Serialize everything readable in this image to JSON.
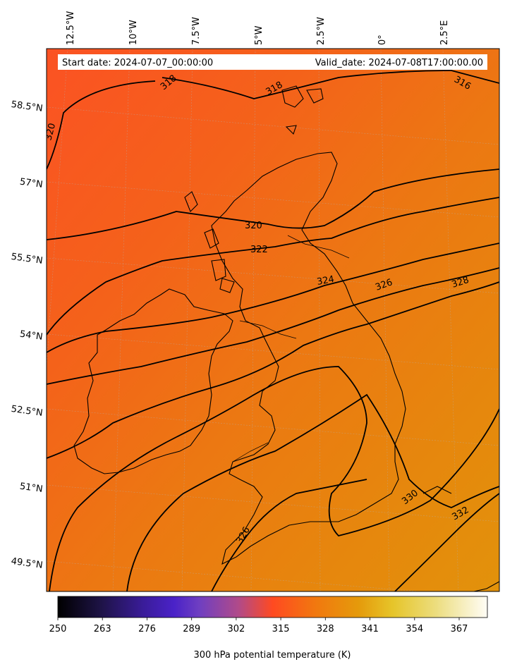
{
  "header": {
    "start_date": "Start date: 2024-07-07_00:00:00",
    "valid_date": "Valid_date: 2024-07-08T17:00:00.00"
  },
  "longitude_labels": [
    "12.5°W",
    "10°W",
    "7.5°W",
    "5°W",
    "2.5°W",
    "0°",
    "2.5°E"
  ],
  "latitude_labels": [
    "58.5°N",
    "57°N",
    "55.5°N",
    "54°N",
    "52.5°N",
    "51°N",
    "49.5°N"
  ],
  "contour_labels": [
    "318",
    "318",
    "316",
    "320",
    "320",
    "322",
    "324",
    "326",
    "328",
    "330",
    "332",
    "326"
  ],
  "colorbar": {
    "title": "300 hPa potential temperature (K)",
    "ticks": [
      "250",
      "263",
      "276",
      "289",
      "302",
      "315",
      "328",
      "341",
      "354",
      "367"
    ],
    "colormap": [
      "#000000",
      "#1e1346",
      "#4a22c8",
      "#6f3fc1",
      "#b04a8a",
      "#ff4a21",
      "#f1780f",
      "#e59a0b",
      "#e6c52a",
      "#ecdd7e",
      "#fffdf6"
    ]
  },
  "field_colors": {
    "north": "#fb5223",
    "mid": "#ef6e14",
    "south": "#e8850e",
    "southeast": "#e38f0b"
  }
}
